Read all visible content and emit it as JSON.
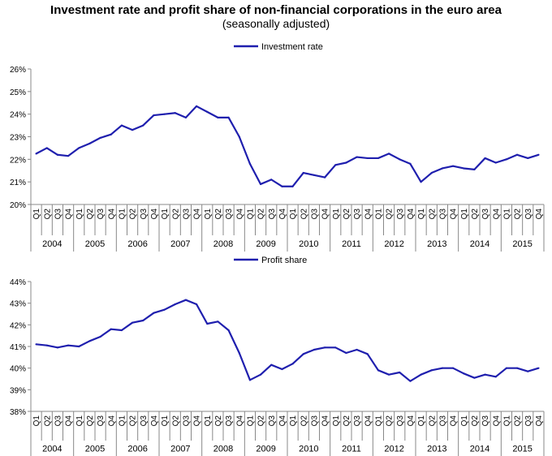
{
  "title": "Investment rate and profit share of non-financial corporations in the euro area",
  "subtitle": "(seasonally adjusted)",
  "colors": {
    "series": "#1f1fae",
    "axis": "#888888"
  },
  "chart_data": [
    {
      "type": "line",
      "title": "Investment rate",
      "legend": "top-center",
      "series": [
        {
          "name": "Investment rate",
          "values": [
            22.25,
            22.5,
            22.2,
            22.15,
            22.5,
            22.7,
            22.95,
            23.1,
            23.5,
            23.3,
            23.5,
            23.95,
            24.0,
            24.05,
            23.85,
            24.35,
            24.1,
            23.85,
            23.85,
            23.0,
            21.8,
            20.9,
            21.1,
            20.8,
            20.8,
            21.4,
            21.3,
            21.2,
            21.75,
            21.85,
            22.1,
            22.05,
            22.05,
            22.25,
            22.0,
            21.8,
            21.0,
            21.4,
            21.6,
            21.7,
            21.6,
            21.55,
            22.05,
            21.85,
            22.0,
            22.2,
            22.05,
            22.2
          ]
        }
      ],
      "yticks": [
        "20%",
        "21%",
        "22%",
        "23%",
        "24%",
        "25%",
        "26%"
      ],
      "ylim": [
        20,
        26
      ],
      "quarters": [
        "Q1",
        "Q2",
        "Q3",
        "Q4"
      ],
      "years": [
        "2004",
        "2005",
        "2006",
        "2007",
        "2008",
        "2009",
        "2010",
        "2011",
        "2012",
        "2013",
        "2014",
        "2015"
      ]
    },
    {
      "type": "line",
      "title": "Profit share",
      "legend": "top-center",
      "series": [
        {
          "name": "Profit share",
          "values": [
            41.1,
            41.05,
            40.95,
            41.05,
            41.0,
            41.25,
            41.45,
            41.8,
            41.75,
            42.1,
            42.2,
            42.55,
            42.7,
            42.95,
            43.15,
            42.95,
            42.05,
            42.15,
            41.75,
            40.7,
            39.45,
            39.7,
            40.15,
            39.95,
            40.2,
            40.65,
            40.85,
            40.95,
            40.95,
            40.7,
            40.85,
            40.65,
            39.9,
            39.7,
            39.8,
            39.4,
            39.7,
            39.9,
            40.0,
            40.0,
            39.75,
            39.55,
            39.7,
            39.6,
            40.0,
            40.0,
            39.85,
            40.0
          ]
        }
      ],
      "yticks": [
        "38%",
        "39%",
        "40%",
        "41%",
        "42%",
        "43%",
        "44%"
      ],
      "ylim": [
        38,
        44
      ],
      "quarters": [
        "Q1",
        "Q2",
        "Q3",
        "Q4"
      ],
      "years": [
        "2004",
        "2005",
        "2006",
        "2007",
        "2008",
        "2009",
        "2010",
        "2011",
        "2012",
        "2013",
        "2014",
        "2015"
      ]
    }
  ]
}
